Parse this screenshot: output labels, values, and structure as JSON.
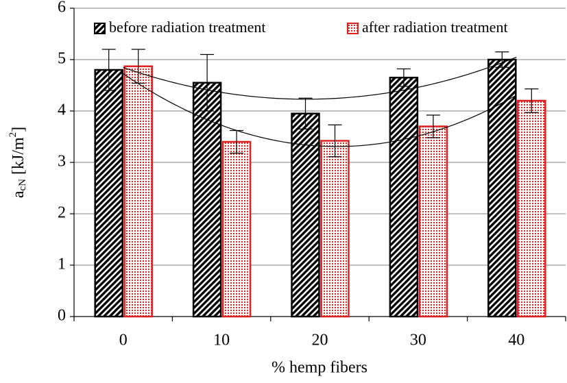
{
  "chart_data": {
    "type": "bar",
    "x_label": "% hemp fibers",
    "y_label": {
      "base": "a",
      "sub": "cN",
      "mid": " [kJ/m",
      "sup": "2",
      "end": "]"
    },
    "categories": [
      "0",
      "10",
      "20",
      "30",
      "40"
    ],
    "series": [
      {
        "name": "before radiation treatment",
        "color": "#000000",
        "pattern": "hatch",
        "values": [
          4.8,
          4.55,
          3.95,
          4.65,
          5.0
        ],
        "errors": [
          0.4,
          0.55,
          0.3,
          0.17,
          0.15
        ]
      },
      {
        "name": "after radiation treatment",
        "color": "#e0201f",
        "pattern": "dots",
        "values": [
          4.87,
          3.4,
          3.42,
          3.7,
          4.2
        ],
        "errors": [
          0.33,
          0.22,
          0.31,
          0.22,
          0.23
        ]
      }
    ],
    "trendline_order": 2,
    "ylim": [
      0,
      6
    ],
    "yticks": [
      0,
      1,
      2,
      3,
      4,
      5,
      6
    ],
    "grid": true,
    "legend": "top"
  }
}
